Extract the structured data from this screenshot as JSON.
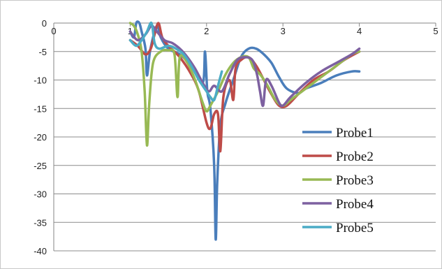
{
  "chart_data": {
    "type": "line",
    "title": "",
    "xlabel": "",
    "ylabel": "",
    "xlim": [
      0,
      5
    ],
    "ylim": [
      -40,
      0
    ],
    "x_ticks": [
      0,
      1,
      2,
      3,
      4,
      5
    ],
    "y_ticks": [
      0,
      -5,
      -10,
      -15,
      -20,
      -25,
      -30,
      -35,
      -40
    ],
    "grid": "horizontal",
    "legend": "right",
    "series": [
      {
        "name": "Probe1",
        "color": "#4a7ebb",
        "points": [
          [
            1.0,
            -1.5
          ],
          [
            1.05,
            -2.5
          ],
          [
            1.08,
            0
          ],
          [
            1.12,
            0
          ],
          [
            1.15,
            -1.5
          ],
          [
            1.2,
            -4.5
          ],
          [
            1.22,
            -9.2
          ],
          [
            1.26,
            -5
          ],
          [
            1.32,
            -1.5
          ],
          [
            1.36,
            -0.5
          ],
          [
            1.4,
            -2.5
          ],
          [
            1.5,
            -4.5
          ],
          [
            1.65,
            -5.5
          ],
          [
            1.8,
            -7.5
          ],
          [
            1.95,
            -10.5
          ],
          [
            1.98,
            -5
          ],
          [
            2.01,
            -12
          ],
          [
            2.05,
            -15
          ],
          [
            2.1,
            -25
          ],
          [
            2.12,
            -38
          ],
          [
            2.14,
            -28
          ],
          [
            2.18,
            -18
          ],
          [
            2.25,
            -14
          ],
          [
            2.35,
            -10
          ],
          [
            2.45,
            -6
          ],
          [
            2.55,
            -4.5
          ],
          [
            2.65,
            -4.5
          ],
          [
            2.75,
            -5.5
          ],
          [
            2.85,
            -7
          ],
          [
            2.95,
            -9.5
          ],
          [
            3.05,
            -11.5
          ],
          [
            3.2,
            -12.3
          ],
          [
            3.3,
            -11.5
          ],
          [
            3.5,
            -10.5
          ],
          [
            3.7,
            -9.2
          ],
          [
            3.9,
            -8.5
          ],
          [
            4.0,
            -8.5
          ]
        ]
      },
      {
        "name": "Probe2",
        "color": "#be4b48",
        "points": [
          [
            1.0,
            -3
          ],
          [
            1.1,
            -4
          ],
          [
            1.2,
            -5.5
          ],
          [
            1.27,
            -4.5
          ],
          [
            1.32,
            -2
          ],
          [
            1.37,
            0
          ],
          [
            1.42,
            -2.5
          ],
          [
            1.5,
            -4
          ],
          [
            1.65,
            -6
          ],
          [
            1.8,
            -9
          ],
          [
            1.9,
            -12
          ],
          [
            2.0,
            -17.5
          ],
          [
            2.05,
            -18.5
          ],
          [
            2.1,
            -16
          ],
          [
            2.15,
            -16
          ],
          [
            2.18,
            -22.5
          ],
          [
            2.22,
            -13
          ],
          [
            2.3,
            -10
          ],
          [
            2.35,
            -13.5
          ],
          [
            2.38,
            -8
          ],
          [
            2.45,
            -6.5
          ],
          [
            2.55,
            -6
          ],
          [
            2.65,
            -7.5
          ],
          [
            2.75,
            -10
          ],
          [
            2.85,
            -12.5
          ],
          [
            2.95,
            -14.5
          ],
          [
            3.05,
            -14.5
          ],
          [
            3.2,
            -12.5
          ],
          [
            3.4,
            -10
          ],
          [
            3.6,
            -8.5
          ],
          [
            3.8,
            -6.5
          ],
          [
            4.0,
            -5
          ]
        ]
      },
      {
        "name": "Probe3",
        "color": "#98b954",
        "points": [
          [
            1.0,
            0
          ],
          [
            1.05,
            -0.5
          ],
          [
            1.1,
            -2
          ],
          [
            1.15,
            -5
          ],
          [
            1.19,
            -12
          ],
          [
            1.22,
            -21.5
          ],
          [
            1.25,
            -14
          ],
          [
            1.3,
            -7
          ],
          [
            1.4,
            -5
          ],
          [
            1.5,
            -4.8
          ],
          [
            1.58,
            -5.5
          ],
          [
            1.62,
            -13
          ],
          [
            1.65,
            -6
          ],
          [
            1.75,
            -7
          ],
          [
            1.85,
            -10
          ],
          [
            1.95,
            -14
          ],
          [
            2.0,
            -15.5
          ],
          [
            2.05,
            -14.5
          ],
          [
            2.15,
            -12
          ],
          [
            2.25,
            -9
          ],
          [
            2.35,
            -7
          ],
          [
            2.45,
            -6
          ],
          [
            2.55,
            -6
          ],
          [
            2.62,
            -8
          ],
          [
            2.7,
            -9
          ],
          [
            2.8,
            -11
          ],
          [
            2.9,
            -13.5
          ],
          [
            3.0,
            -14.5
          ],
          [
            3.1,
            -13.5
          ],
          [
            3.3,
            -11.5
          ],
          [
            3.5,
            -9.5
          ],
          [
            3.7,
            -7.5
          ],
          [
            3.9,
            -5.5
          ],
          [
            4.0,
            -5
          ]
        ]
      },
      {
        "name": "Probe4",
        "color": "#7d60a0",
        "points": [
          [
            1.0,
            -1.5
          ],
          [
            1.1,
            -3
          ],
          [
            1.2,
            -2
          ],
          [
            1.28,
            -0.5
          ],
          [
            1.35,
            -1.5
          ],
          [
            1.45,
            -3
          ],
          [
            1.55,
            -3.5
          ],
          [
            1.65,
            -4.5
          ],
          [
            1.75,
            -6
          ],
          [
            1.85,
            -8
          ],
          [
            1.95,
            -10.5
          ],
          [
            2.03,
            -12
          ],
          [
            2.1,
            -11
          ],
          [
            2.2,
            -12
          ],
          [
            2.3,
            -9
          ],
          [
            2.4,
            -6.5
          ],
          [
            2.5,
            -6
          ],
          [
            2.6,
            -6.5
          ],
          [
            2.66,
            -9
          ],
          [
            2.7,
            -12
          ],
          [
            2.74,
            -14.5
          ],
          [
            2.78,
            -10
          ],
          [
            2.85,
            -11
          ],
          [
            2.95,
            -14
          ],
          [
            3.0,
            -14.5
          ],
          [
            3.1,
            -13
          ],
          [
            3.3,
            -10.5
          ],
          [
            3.5,
            -8.5
          ],
          [
            3.7,
            -7
          ],
          [
            3.9,
            -5.5
          ],
          [
            4.0,
            -4.5
          ]
        ]
      },
      {
        "name": "Probe5",
        "color": "#4bacc6",
        "points": [
          [
            1.0,
            -3
          ],
          [
            1.08,
            -4
          ],
          [
            1.15,
            -3
          ],
          [
            1.22,
            -1.5
          ],
          [
            1.28,
            0
          ],
          [
            1.32,
            -3.5
          ],
          [
            1.38,
            -4.5
          ],
          [
            1.5,
            -4
          ],
          [
            1.6,
            -4.5
          ],
          [
            1.7,
            -5.5
          ],
          [
            1.8,
            -7.5
          ],
          [
            1.9,
            -10
          ],
          [
            2.0,
            -12
          ],
          [
            2.05,
            -13
          ],
          [
            2.1,
            -13.5
          ],
          [
            2.15,
            -11
          ],
          [
            2.2,
            -8.5
          ]
        ]
      }
    ]
  }
}
